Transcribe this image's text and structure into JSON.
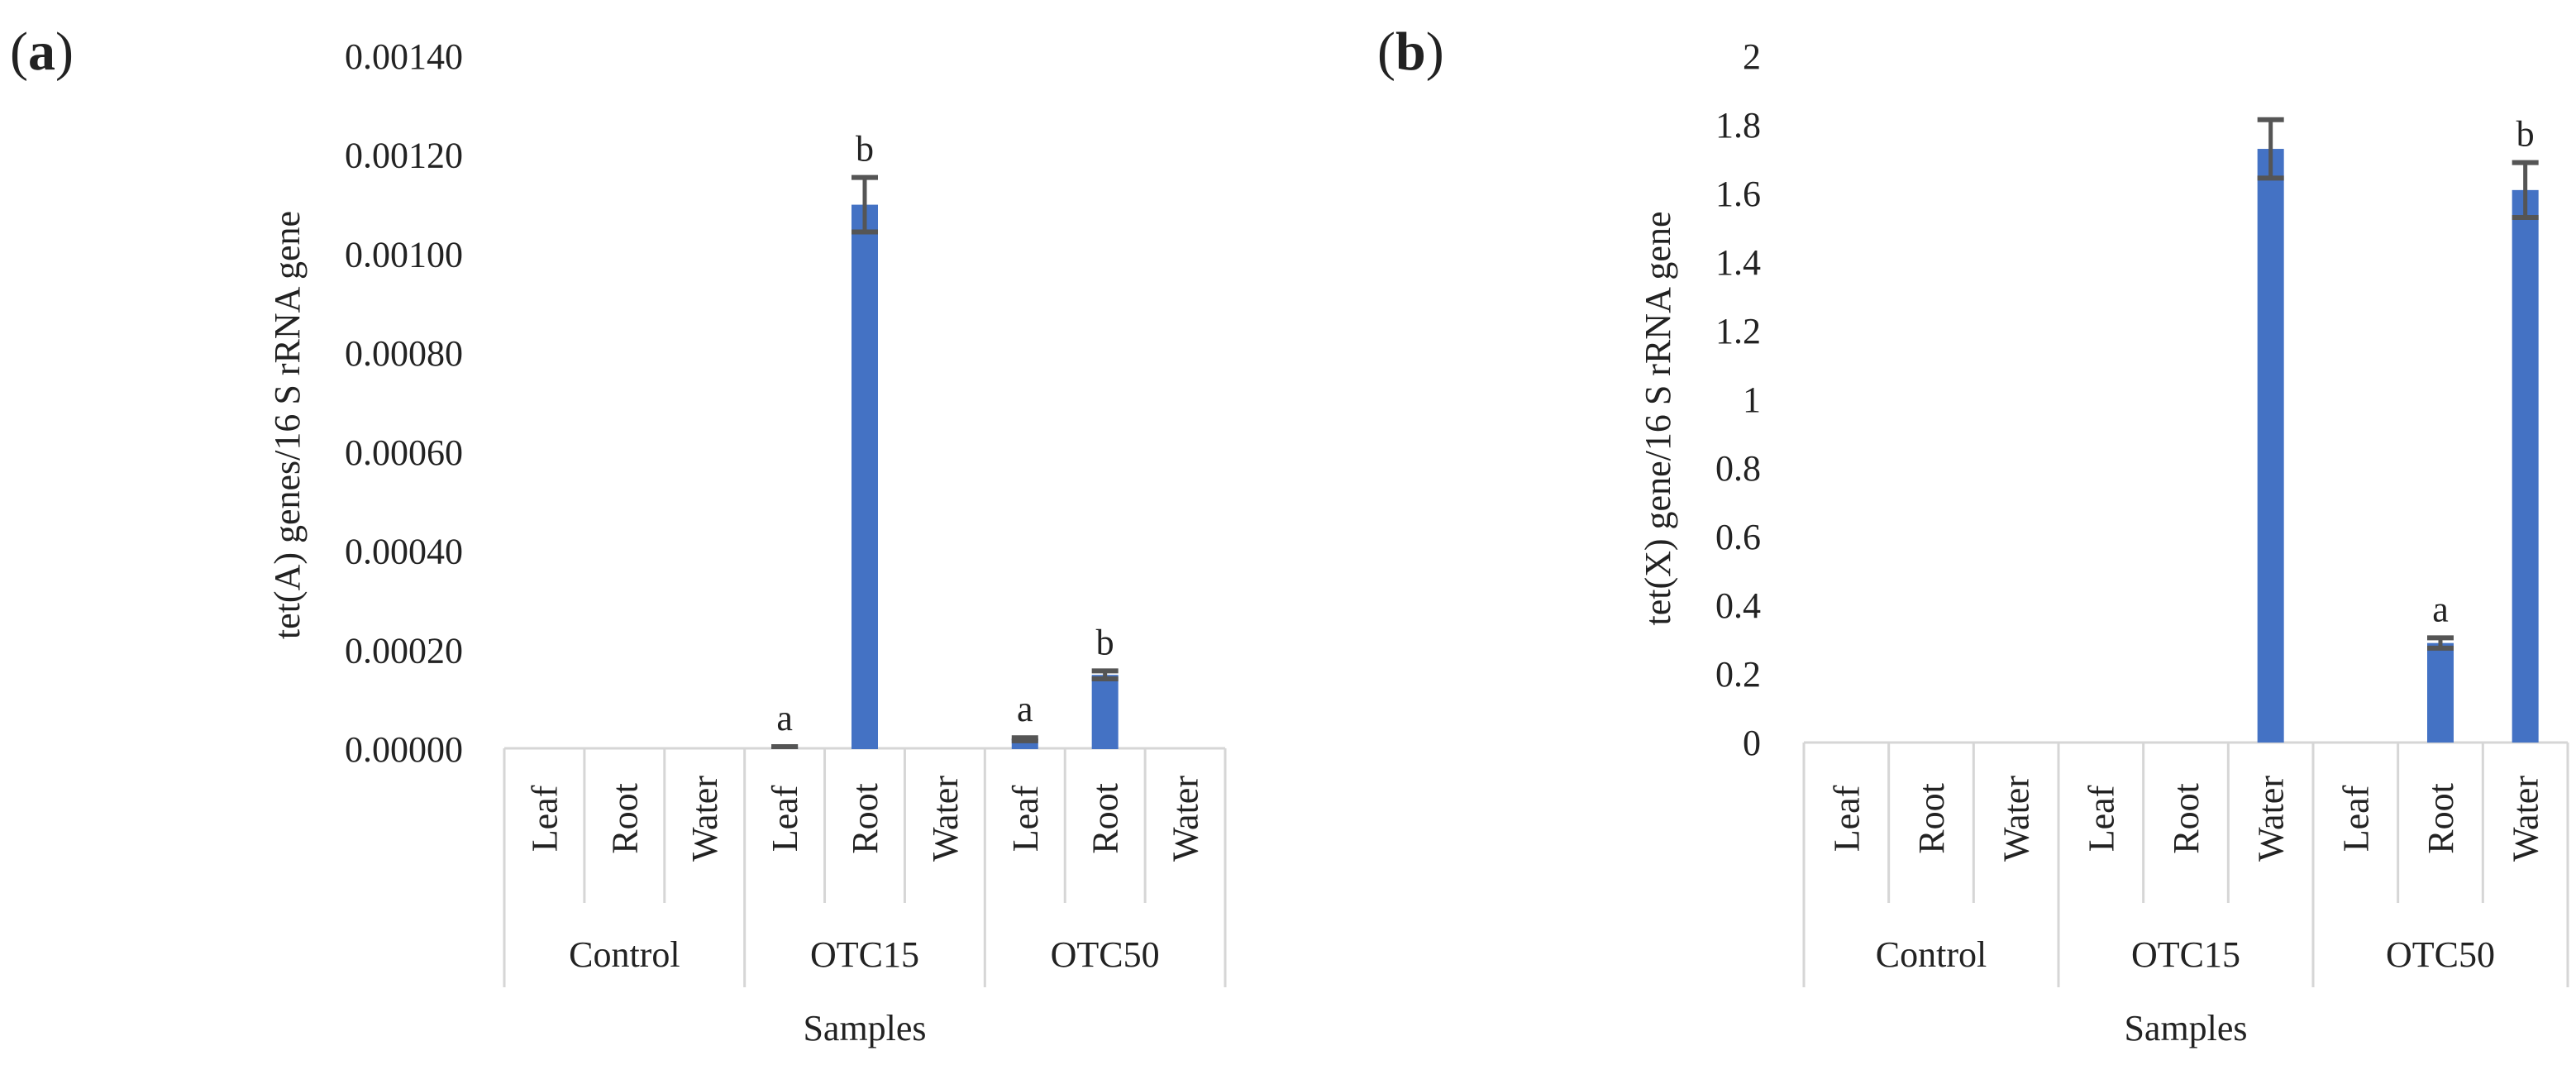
{
  "chart_data": [
    {
      "panel_label": "a",
      "type": "bar",
      "title": "",
      "xlabel": "Samples",
      "ylabel": "tet(A) genes/16 S rRNA gene",
      "ylim": [
        0,
        0.0014
      ],
      "yticks": [
        "0.00000",
        "0.00020",
        "0.00040",
        "0.00060",
        "0.00080",
        "0.00100",
        "0.00120",
        "0.00140"
      ],
      "groups": [
        "Control",
        "OTC15",
        "OTC50"
      ],
      "categories": [
        "Leaf",
        "Root",
        "Water",
        "Leaf",
        "Root",
        "Water",
        "Leaf",
        "Root",
        "Water"
      ],
      "values": [
        0,
        0,
        0,
        5e-06,
        0.0011,
        0,
        2e-05,
        0.00015,
        0
      ],
      "error": [
        0,
        0,
        0,
        0,
        5.5e-05,
        0,
        3e-06,
        8e-06,
        0
      ],
      "labels": [
        "",
        "",
        "",
        "a",
        "b",
        "",
        "a",
        "b",
        ""
      ],
      "color": "#4472C4",
      "error_color": "#555555"
    },
    {
      "panel_label": "b",
      "type": "bar",
      "title": "",
      "xlabel": "Samples",
      "ylabel": "tet(X) gene/16 S rRNA gene",
      "ylim": [
        0,
        2
      ],
      "yticks": [
        "0",
        "0.2",
        "0.4",
        "0.6",
        "0.8",
        "1",
        "1.2",
        "1.4",
        "1.6",
        "1.8",
        "2"
      ],
      "groups": [
        "Control",
        "OTC15",
        "OTC50"
      ],
      "categories": [
        "Leaf",
        "Root",
        "Water",
        "Leaf",
        "Root",
        "Water",
        "Leaf",
        "Root",
        "Water"
      ],
      "values": [
        0,
        0,
        0,
        0,
        0,
        1.73,
        0,
        0.29,
        1.61
      ],
      "error": [
        0,
        0,
        0,
        0,
        0,
        0.085,
        0,
        0.015,
        0.08
      ],
      "labels": [
        "",
        "",
        "",
        "",
        "",
        "",
        "",
        "a",
        "b"
      ],
      "color": "#4472C4",
      "error_color": "#555555"
    }
  ]
}
